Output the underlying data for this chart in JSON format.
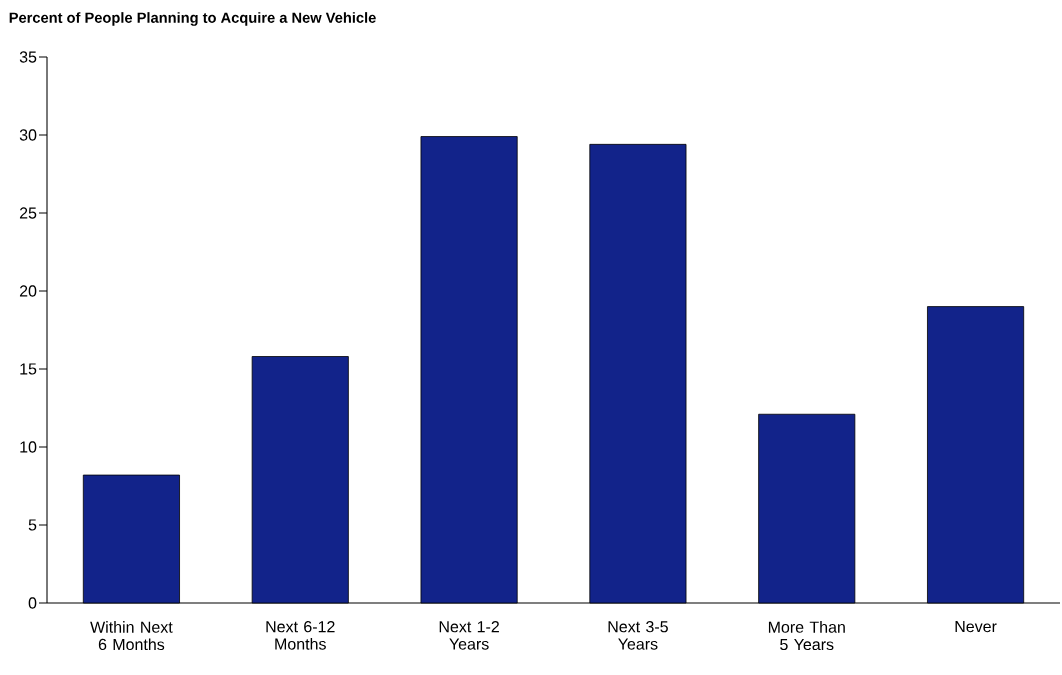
{
  "chart_data": {
    "type": "bar",
    "title": "Percent of People Planning to Acquire a New Vehicle",
    "categories": [
      "Within Next 6 Months",
      "Next 6-12 Months",
      "Next 1-2 Years",
      "Next 3-5 Years",
      "More Than 5 Years",
      "Never"
    ],
    "values": [
      8.2,
      15.8,
      29.9,
      29.4,
      12.1,
      19.0
    ],
    "color": "#12238a",
    "ylim": [
      0,
      35
    ],
    "yticks": [
      0,
      5,
      10,
      15,
      20,
      25,
      30,
      35
    ]
  }
}
